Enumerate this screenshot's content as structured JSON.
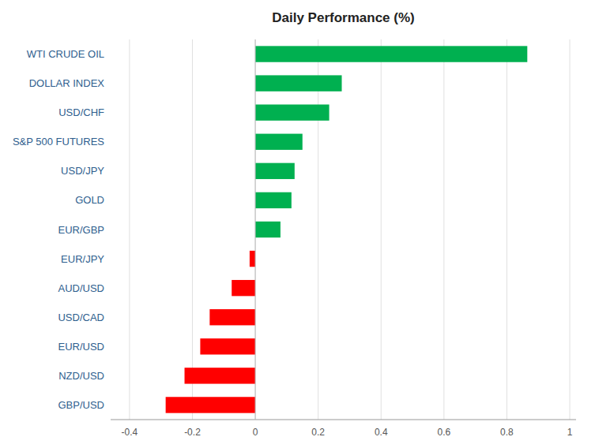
{
  "chart_data": {
    "type": "bar",
    "orientation": "horizontal",
    "title": "Daily Performance (%)",
    "categories": [
      "GBP/USD",
      "NZD/USD",
      "EUR/USD",
      "USD/CAD",
      "AUD/USD",
      "EUR/JPY",
      "EUR/GBP",
      "GOLD",
      "USD/JPY",
      "S&P 500 FUTURES",
      "USD/CHF",
      "DOLLAR INDEX",
      "WTI CRUDE OIL"
    ],
    "values": [
      -0.285,
      -0.225,
      -0.175,
      -0.145,
      -0.075,
      -0.018,
      0.08,
      0.115,
      0.125,
      0.15,
      0.235,
      0.275,
      0.865
    ],
    "colors": [
      "#ff0000",
      "#ff0000",
      "#ff0000",
      "#ff0000",
      "#ff0000",
      "#ff0000",
      "#00b050",
      "#00b050",
      "#00b050",
      "#00b050",
      "#00b050",
      "#00b050",
      "#00b050"
    ],
    "xlim": [
      -0.46,
      1.02
    ],
    "xticks": [
      -0.4,
      -0.2,
      0,
      0.2,
      0.4,
      0.6,
      0.8,
      1
    ],
    "grid": true
  }
}
